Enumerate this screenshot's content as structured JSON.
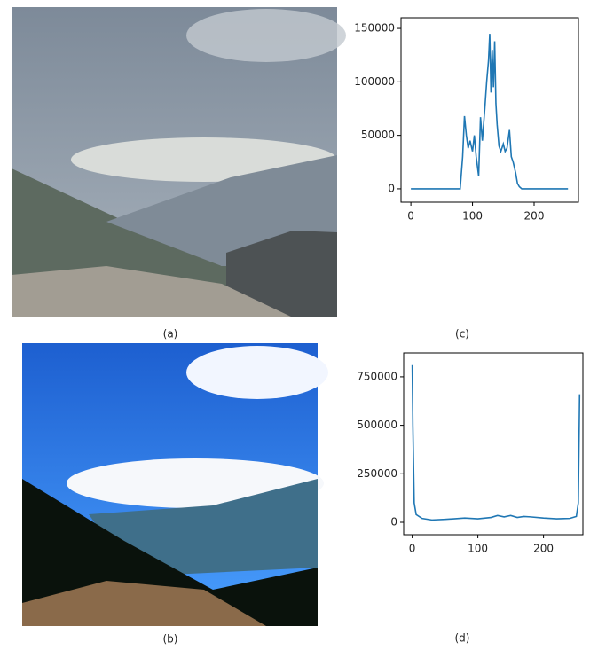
{
  "images": [
    {
      "caption": "(a)"
    },
    {
      "caption": "(b)"
    }
  ],
  "chart_data": [
    {
      "type": "line",
      "caption": "(c)",
      "color": "#1f77b4",
      "x": [
        0,
        80,
        84,
        87,
        90,
        93,
        96,
        100,
        103,
        106,
        110,
        113,
        116,
        120,
        123,
        126,
        128,
        130,
        132,
        134,
        136,
        138,
        140,
        143,
        146,
        150,
        153,
        156,
        160,
        163,
        166,
        170,
        173,
        176,
        180,
        185,
        255
      ],
      "values": [
        0,
        0,
        30000,
        68000,
        50000,
        38000,
        45000,
        35000,
        50000,
        30000,
        12000,
        67000,
        45000,
        75000,
        100000,
        120000,
        145000,
        90000,
        130000,
        95000,
        138000,
        80000,
        60000,
        40000,
        35000,
        42000,
        35000,
        38000,
        55000,
        30000,
        25000,
        15000,
        5000,
        2000,
        0,
        0,
        0
      ],
      "xlim": [
        -16,
        272
      ],
      "ylim": [
        -12500,
        160000
      ],
      "xticks": [
        0,
        100,
        200
      ],
      "yticks": [
        0,
        50000,
        100000,
        150000
      ]
    },
    {
      "type": "line",
      "caption": "(d)",
      "color": "#1f77b4",
      "x": [
        0,
        1,
        3,
        6,
        15,
        30,
        50,
        80,
        100,
        120,
        130,
        140,
        150,
        160,
        170,
        180,
        200,
        220,
        240,
        250,
        253,
        255
      ],
      "values": [
        810000,
        500000,
        100000,
        40000,
        20000,
        12000,
        15000,
        22000,
        18000,
        25000,
        35000,
        28000,
        35000,
        25000,
        30000,
        28000,
        22000,
        18000,
        20000,
        30000,
        100000,
        660000
      ],
      "xlim": [
        -13,
        260
      ],
      "ylim": [
        -64000,
        873000
      ],
      "xticks": [
        0,
        100,
        200
      ],
      "yticks": [
        0,
        250000,
        500000,
        750000
      ]
    }
  ]
}
